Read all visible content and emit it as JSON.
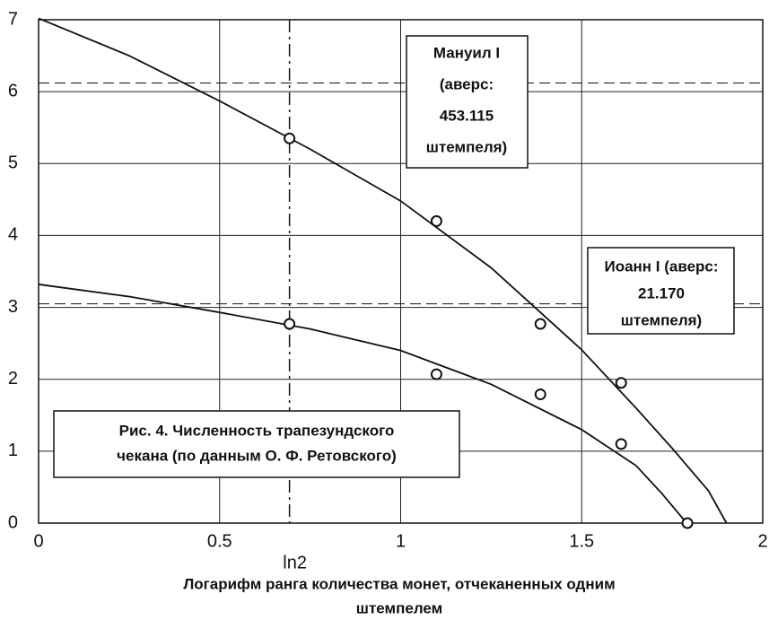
{
  "chart_data": {
    "type": "scatter",
    "xlim": [
      0,
      2
    ],
    "ylim": [
      0,
      7
    ],
    "xticks": [
      0,
      0.5,
      1,
      1.5,
      2
    ],
    "yticks": [
      0,
      1,
      2,
      3,
      4,
      5,
      6,
      7
    ],
    "grid": true,
    "xlabel": [
      "Логарифм  ранга  количества  монет,  отчеканенных  одним",
      "штемпелем"
    ],
    "series": [
      {
        "color": "#111",
        "x": [
          0.693,
          1.099,
          1.386,
          1.609
        ],
        "values": [
          5.35,
          4.2,
          2.77,
          1.95
        ],
        "fit": {
          "x": [
            0,
            0.25,
            0.5,
            0.75,
            1,
            1.25,
            1.5,
            1.65,
            1.75,
            1.85,
            1.9
          ],
          "values": [
            7.02,
            6.5,
            5.87,
            5.2,
            4.48,
            3.55,
            2.41,
            1.6,
            1.04,
            0.45,
            0
          ]
        }
      },
      {
        "color": "#111",
        "x": [
          0.693,
          1.099,
          1.386,
          1.609,
          1.792
        ],
        "values": [
          2.77,
          2.07,
          1.79,
          1.1,
          0
        ],
        "fit": {
          "x": [
            0,
            0.25,
            0.5,
            0.75,
            1,
            1.25,
            1.5,
            1.65,
            1.72,
            1.79
          ],
          "values": [
            3.32,
            3.15,
            2.93,
            2.7,
            2.4,
            1.93,
            1.3,
            0.8,
            0.42,
            0
          ]
        }
      }
    ],
    "vlines": [
      {
        "value": 0.693,
        "label": "ln2"
      }
    ],
    "hlines": [
      6.12,
      3.05
    ],
    "annotations": [
      [
        "Мануил I",
        "(аверс:",
        "453.115",
        "штемпеля)"
      ],
      [
        "Иоанн I (аверс:",
        "21.170",
        "штемпеля)"
      ],
      [
        "Рис. 4. Численность трапезундского",
        "чекана  (по данным О. Ф. Ретовского)"
      ]
    ]
  }
}
